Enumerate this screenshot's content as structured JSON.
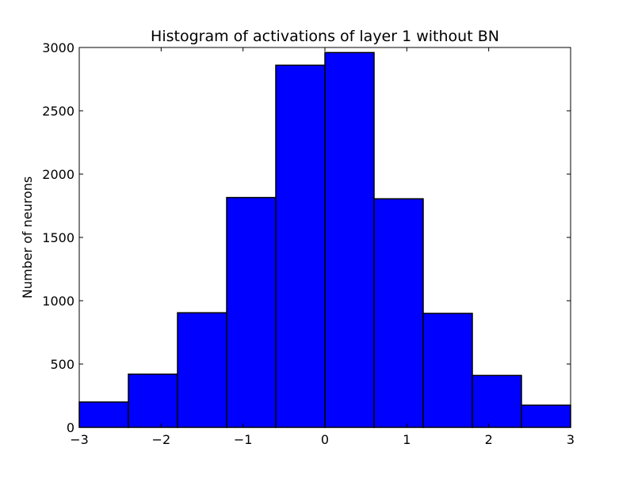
{
  "chart_data": {
    "type": "bar",
    "title": "Histogram of activations of layer 1  without BN",
    "xlabel": "",
    "ylabel": "Number of neurons",
    "xlim": [
      -3,
      3
    ],
    "ylim": [
      0,
      3000
    ],
    "x_ticks": [
      -3,
      -2,
      -1,
      0,
      1,
      2,
      3
    ],
    "x_tick_labels": [
      "−3",
      "−2",
      "−1",
      "0",
      "1",
      "2",
      "3"
    ],
    "y_ticks": [
      0,
      500,
      1000,
      1500,
      2000,
      2500,
      3000
    ],
    "y_tick_labels": [
      "0",
      "500",
      "1000",
      "1500",
      "2000",
      "2500",
      "3000"
    ],
    "bin_edges": [
      -3,
      -2.4,
      -1.8,
      -1.2,
      -0.6,
      0,
      0.6,
      1.2,
      1.8,
      2.4,
      3
    ],
    "values": [
      200,
      420,
      905,
      1815,
      2860,
      2960,
      1805,
      900,
      410,
      175
    ],
    "grid": false,
    "bar_color": "#0000ff",
    "edge_color": "#000000"
  }
}
